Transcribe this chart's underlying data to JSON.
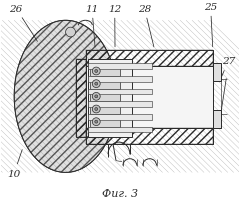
{
  "bg_color": "#ffffff",
  "line_color": "#2a2a2a",
  "title": "Фиг. 3",
  "title_fontsize": 8,
  "fig_width": 2.4,
  "fig_height": 2.03,
  "dpi": 100
}
